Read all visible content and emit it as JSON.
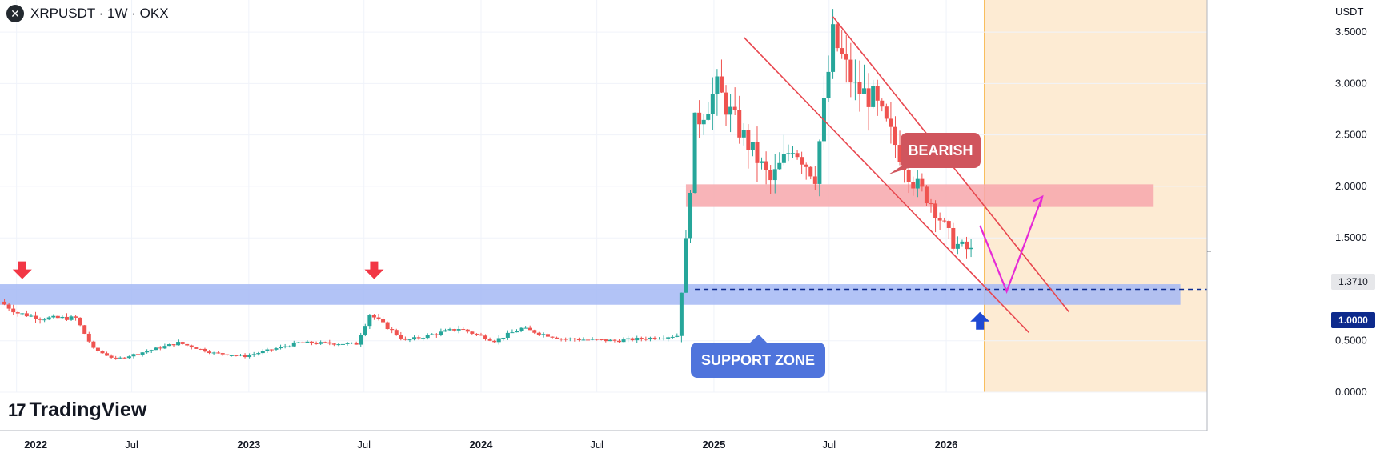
{
  "header": {
    "logo_glyph": "✕",
    "symbol_label": "XRPUSDT · 1W · OKX"
  },
  "price_axis": {
    "unit": "USDT",
    "ticks": [
      "3.5000",
      "3.0000",
      "2.5000",
      "2.0000",
      "1.5000",
      "1.0000",
      "0.5000",
      "0.0000"
    ],
    "last_price_tag": "1.3710",
    "level_tag": "1.0000"
  },
  "time_axis": {
    "labels": [
      "2022",
      "Jul",
      "2023",
      "Jul",
      "2024",
      "Jul",
      "2025",
      "Jul",
      "2026"
    ]
  },
  "annotations": {
    "bearish_label": "BEARISH",
    "support_label": "SUPPORT ZONE"
  },
  "branding": {
    "logo_glyph": "17",
    "brand_name": "TradingView"
  },
  "colors": {
    "up": "#26a69a",
    "down": "#ef5350",
    "support_zone": "#a5b8f5",
    "resistance_zone": "#f7a7ab",
    "future_zone": "#fdebd3",
    "channel": "#e8474f",
    "projection": "#e62ad6",
    "bearish_callout": "#d0555d",
    "support_callout": "#4f74dc",
    "level_tag": "#0d2a8c"
  },
  "chart_data": {
    "type": "candlestick",
    "symbol": "XRPUSDT",
    "interval": "1W",
    "exchange": "OKX",
    "unit": "USDT",
    "ylim": [
      0,
      3.75
    ],
    "xlim": [
      "2021-12-06",
      "2027-02-15"
    ],
    "grid": true,
    "key_points": [
      {
        "date": "2021-12-13",
        "price": 0.88
      },
      {
        "date": "2022-01-10",
        "price": 0.77
      },
      {
        "date": "2022-02-14",
        "price": 0.72
      },
      {
        "date": "2022-04-11",
        "price": 0.72
      },
      {
        "date": "2022-05-09",
        "price": 0.42
      },
      {
        "date": "2022-06-13",
        "price": 0.32
      },
      {
        "date": "2022-09-19",
        "price": 0.48
      },
      {
        "date": "2022-11-14",
        "price": 0.38
      },
      {
        "date": "2023-01-02",
        "price": 0.35
      },
      {
        "date": "2023-03-27",
        "price": 0.48
      },
      {
        "date": "2023-06-26",
        "price": 0.47
      },
      {
        "date": "2023-07-17",
        "price": 0.76
      },
      {
        "date": "2023-09-11",
        "price": 0.5
      },
      {
        "date": "2023-12-04",
        "price": 0.62
      },
      {
        "date": "2024-01-29",
        "price": 0.5
      },
      {
        "date": "2024-03-11",
        "price": 0.62
      },
      {
        "date": "2024-05-13",
        "price": 0.52
      },
      {
        "date": "2024-08-05",
        "price": 0.5
      },
      {
        "date": "2024-10-07",
        "price": 0.53
      },
      {
        "date": "2024-11-11",
        "price": 0.55
      },
      {
        "date": "2024-11-25",
        "price": 1.45
      },
      {
        "date": "2024-12-09",
        "price": 2.6
      },
      {
        "date": "2025-01-13",
        "price": 2.95
      },
      {
        "date": "2025-02-17",
        "price": 2.55
      },
      {
        "date": "2025-04-07",
        "price": 2.05
      },
      {
        "date": "2025-05-12",
        "price": 2.4
      },
      {
        "date": "2025-06-16",
        "price": 2.1
      },
      {
        "date": "2025-07-14",
        "price": 3.45
      },
      {
        "date": "2025-08-18",
        "price": 2.95
      },
      {
        "date": "2025-09-15",
        "price": 2.85
      },
      {
        "date": "2025-10-13",
        "price": 2.5
      },
      {
        "date": "2025-11-17",
        "price": 2.05
      },
      {
        "date": "2025-12-15",
        "price": 1.85
      },
      {
        "date": "2026-01-19",
        "price": 1.45
      },
      {
        "date": "2026-02-16",
        "price": 1.37
      }
    ],
    "levels": [
      {
        "price": 1.0,
        "style": "dashed"
      }
    ],
    "zones": [
      {
        "label": "SUPPORT ZONE",
        "from_price": 0.85,
        "to_price": 1.05,
        "x_from": "2021-12-06",
        "x_to": "2027-01-04"
      },
      {
        "from_price": 1.8,
        "to_price": 2.02,
        "x_from": "2024-11-18",
        "x_to": "2026-11-23"
      }
    ],
    "channel": [
      {
        "from": [
          "2025-02-17",
          3.45
        ],
        "to": [
          "2026-05-11",
          0.58
        ]
      },
      {
        "from": [
          "2025-07-07",
          3.65
        ],
        "to": [
          "2026-07-13",
          0.78
        ]
      }
    ],
    "projection": [
      [
        "2026-02-23",
        1.62
      ],
      [
        "2026-04-06",
        0.98
      ],
      [
        "2026-06-01",
        1.9
      ]
    ],
    "markers": [
      {
        "type": "arrow-down",
        "date": "2022-01-10",
        "price": 1.1
      },
      {
        "type": "arrow-down",
        "date": "2023-07-17",
        "price": 1.1
      },
      {
        "type": "arrow-up",
        "date": "2026-02-23",
        "price": 0.78
      }
    ],
    "future_region_from": "2026-03-02"
  }
}
